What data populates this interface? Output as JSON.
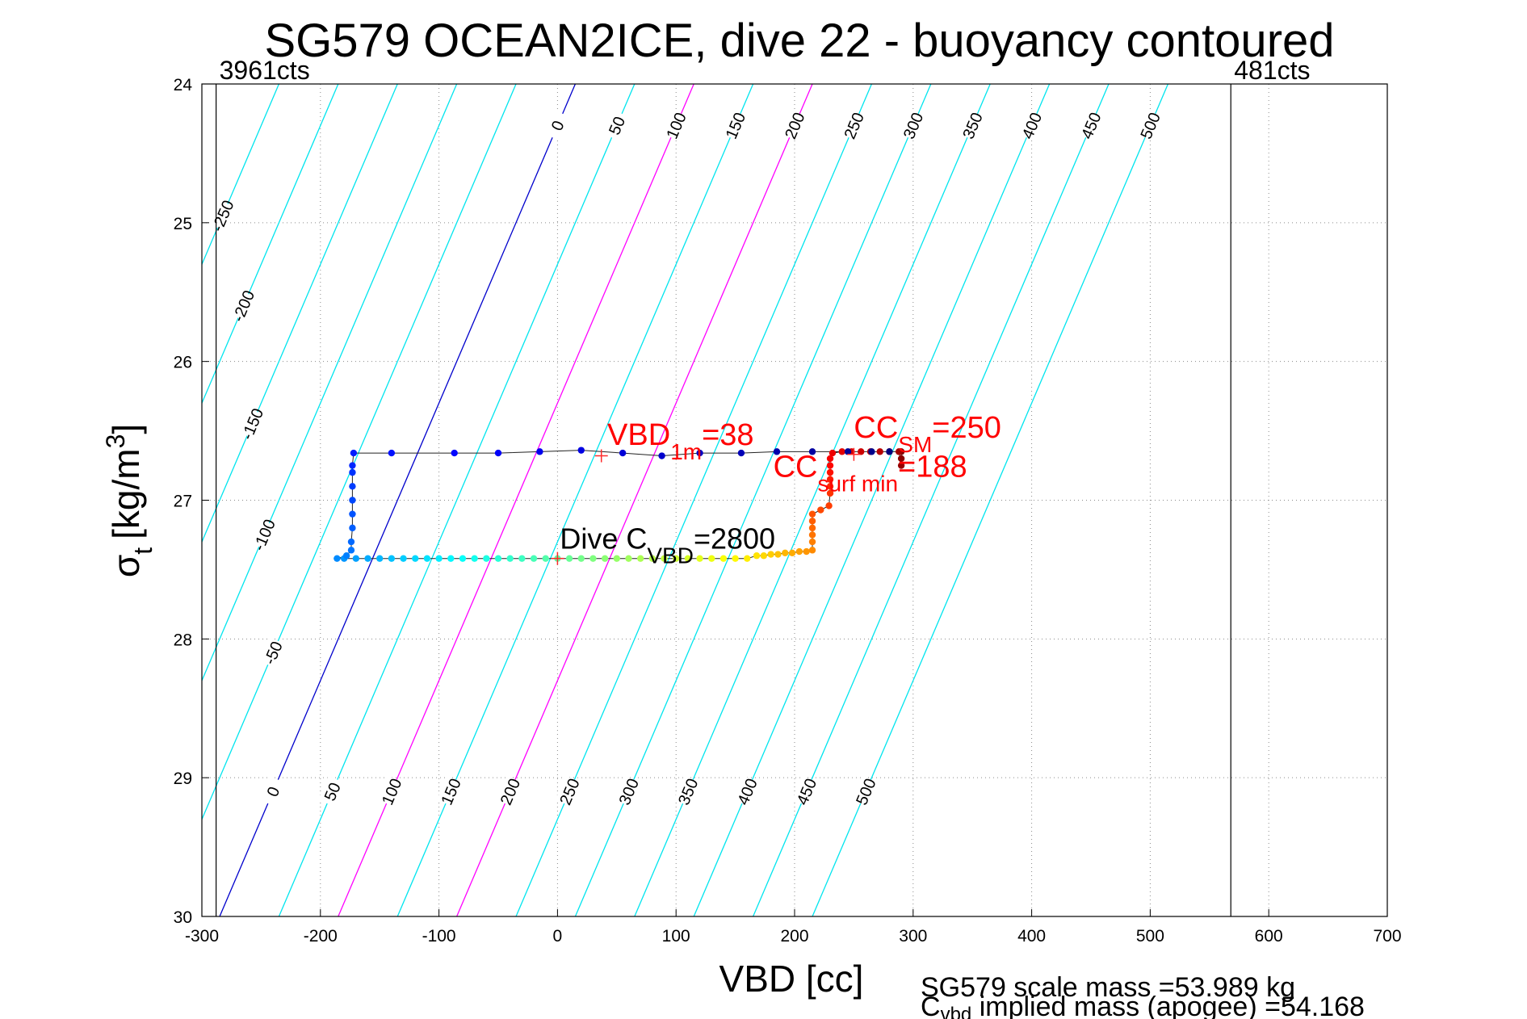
{
  "chart_data": {
    "type": "scatter",
    "title": "SG579 OCEAN2ICE, dive 22 - buoyancy contoured",
    "xlabel": "VBD [cc]",
    "ylabel_main": "σ",
    "ylabel_sub": "t",
    "ylabel_unit": "[kg/m",
    "ylabel_sup": "3",
    "ylabel_close": "]",
    "xlim": [
      -300,
      700
    ],
    "ylim": [
      24,
      30
    ],
    "y_reversed": true,
    "grid": true,
    "xticks": [
      -300,
      -200,
      -100,
      0,
      100,
      200,
      300,
      400,
      500,
      600,
      700
    ],
    "yticks": [
      24,
      25,
      26,
      27,
      28,
      29,
      30
    ],
    "xtick_labels": [
      "-300",
      "-200",
      "-100",
      "0",
      "100",
      "200",
      "300",
      "400",
      "500",
      "600",
      "700"
    ],
    "ytick_labels": [
      "24",
      "25",
      "26",
      "27",
      "28",
      "29",
      "30"
    ],
    "counts_lines": [
      {
        "x": -288,
        "label": "3961cts"
      },
      {
        "x": 568,
        "label": "481cts"
      }
    ],
    "buoyancy_contours": {
      "levels": [
        -250,
        -200,
        -150,
        -100,
        -50,
        0,
        50,
        100,
        150,
        200,
        250,
        300,
        350,
        400,
        450,
        500
      ],
      "labels": [
        "-250",
        "-200",
        "-150",
        "-100",
        "-50",
        "0",
        "50",
        "100",
        "150",
        "200",
        "250",
        "300",
        "350",
        "400",
        "450",
        "500"
      ],
      "top_labels": [
        "-250",
        "-200",
        "-150",
        "-100",
        "-50",
        "0",
        "50",
        "100",
        "150",
        "200",
        "250",
        "300",
        "350",
        "400",
        "450",
        "500"
      ],
      "bottom_labels": [
        "0",
        "50",
        "100",
        "150",
        "200",
        "250",
        "300",
        "350",
        "400",
        "450",
        "500"
      ],
      "zero_x_at_sigma24": 15,
      "zero_x_at_sigma30": -285,
      "colors": {
        "default": "#00e5ee",
        "zero": "#0000cc",
        "highlight": "#ff00ff"
      },
      "highlight_levels": [
        100,
        200
      ]
    },
    "dive_points": [
      {
        "x": 290,
        "y": 26.65
      },
      {
        "x": 290,
        "y": 26.7
      },
      {
        "x": 290,
        "y": 26.75
      },
      {
        "x": 288,
        "y": 26.65
      },
      {
        "x": 280,
        "y": 26.65
      },
      {
        "x": 272,
        "y": 26.65
      },
      {
        "x": 264,
        "y": 26.65
      },
      {
        "x": 256,
        "y": 26.65
      },
      {
        "x": 248,
        "y": 26.65
      },
      {
        "x": 240,
        "y": 26.65
      },
      {
        "x": 232,
        "y": 26.66
      },
      {
        "x": 230,
        "y": 26.7
      },
      {
        "x": 230,
        "y": 26.75
      },
      {
        "x": 230,
        "y": 26.8
      },
      {
        "x": 230,
        "y": 26.85
      },
      {
        "x": 230,
        "y": 26.9
      },
      {
        "x": 230,
        "y": 26.95
      },
      {
        "x": 229,
        "y": 27.04
      },
      {
        "x": 222,
        "y": 27.07
      },
      {
        "x": 215,
        "y": 27.1
      },
      {
        "x": 215,
        "y": 27.15
      },
      {
        "x": 215,
        "y": 27.2
      },
      {
        "x": 215,
        "y": 27.25
      },
      {
        "x": 215,
        "y": 27.3
      },
      {
        "x": 215,
        "y": 27.36
      },
      {
        "x": 210,
        "y": 27.37
      },
      {
        "x": 204,
        "y": 27.37
      },
      {
        "x": 198,
        "y": 27.38
      },
      {
        "x": 192,
        "y": 27.38
      },
      {
        "x": 186,
        "y": 27.39
      },
      {
        "x": 180,
        "y": 27.39
      },
      {
        "x": 174,
        "y": 27.4
      },
      {
        "x": 168,
        "y": 27.4
      },
      {
        "x": 160,
        "y": 27.42
      },
      {
        "x": 150,
        "y": 27.42
      },
      {
        "x": 140,
        "y": 27.42
      },
      {
        "x": 130,
        "y": 27.42
      },
      {
        "x": 120,
        "y": 27.42
      },
      {
        "x": 110,
        "y": 27.42
      },
      {
        "x": 100,
        "y": 27.42
      },
      {
        "x": 90,
        "y": 27.42
      },
      {
        "x": 80,
        "y": 27.42
      },
      {
        "x": 70,
        "y": 27.42
      },
      {
        "x": 60,
        "y": 27.42
      },
      {
        "x": 50,
        "y": 27.42
      },
      {
        "x": 40,
        "y": 27.42
      },
      {
        "x": 30,
        "y": 27.42
      },
      {
        "x": 20,
        "y": 27.42
      },
      {
        "x": 10,
        "y": 27.42
      },
      {
        "x": 0,
        "y": 27.42
      },
      {
        "x": -10,
        "y": 27.42
      },
      {
        "x": -20,
        "y": 27.42
      },
      {
        "x": -30,
        "y": 27.42
      },
      {
        "x": -40,
        "y": 27.42
      },
      {
        "x": -50,
        "y": 27.42
      },
      {
        "x": -60,
        "y": 27.42
      },
      {
        "x": -70,
        "y": 27.42
      },
      {
        "x": -80,
        "y": 27.42
      },
      {
        "x": -90,
        "y": 27.42
      },
      {
        "x": -100,
        "y": 27.42
      },
      {
        "x": -110,
        "y": 27.42
      },
      {
        "x": -120,
        "y": 27.42
      },
      {
        "x": -130,
        "y": 27.42
      },
      {
        "x": -140,
        "y": 27.42
      },
      {
        "x": -150,
        "y": 27.42
      },
      {
        "x": -160,
        "y": 27.42
      },
      {
        "x": -170,
        "y": 27.42
      },
      {
        "x": -180,
        "y": 27.42
      },
      {
        "x": -186,
        "y": 27.42
      },
      {
        "x": -178,
        "y": 27.4
      },
      {
        "x": -174,
        "y": 27.36
      },
      {
        "x": -174,
        "y": 27.3
      },
      {
        "x": -173,
        "y": 27.2
      },
      {
        "x": -173,
        "y": 27.1
      },
      {
        "x": -173,
        "y": 27.0
      },
      {
        "x": -173,
        "y": 26.9
      },
      {
        "x": -173,
        "y": 26.8
      },
      {
        "x": -173,
        "y": 26.75
      },
      {
        "x": -172,
        "y": 26.66
      },
      {
        "x": -140,
        "y": 26.66
      },
      {
        "x": -87,
        "y": 26.66
      },
      {
        "x": -50,
        "y": 26.66
      },
      {
        "x": -15,
        "y": 26.65
      },
      {
        "x": 20,
        "y": 26.64
      },
      {
        "x": 55,
        "y": 26.66
      },
      {
        "x": 88,
        "y": 26.68
      },
      {
        "x": 120,
        "y": 26.66
      },
      {
        "x": 155,
        "y": 26.66
      },
      {
        "x": 185,
        "y": 26.65
      },
      {
        "x": 215,
        "y": 26.65
      },
      {
        "x": 245,
        "y": 26.65
      },
      {
        "x": 265,
        "y": 26.65
      },
      {
        "x": 280,
        "y": 26.65
      }
    ],
    "markers": [
      {
        "x": 37,
        "y": 26.68
      },
      {
        "x": 250,
        "y": 26.67
      },
      {
        "x": 0,
        "y": 27.42
      }
    ],
    "annotations": {
      "vbd_1m": {
        "main": "VBD",
        "sub": "1m",
        "value": "=38",
        "x": 42,
        "y": 26.6
      },
      "cc_sm": {
        "main": "CC",
        "sub": "SM",
        "value": "=250",
        "x": 250,
        "y": 26.55
      },
      "cc_surf_min": {
        "main": "CC",
        "sub": "surf min",
        "value": "=188",
        "x": 182,
        "y": 26.83
      },
      "dive_cvbd": {
        "main": "Dive C",
        "sub": "VBD",
        "value": "=2800",
        "x": 2,
        "y": 27.35
      }
    }
  },
  "footer": {
    "scale_mass": "SG579 scale mass =53.989 kg",
    "implied_main": "C",
    "implied_sub": "vbd",
    "implied_rest": " implied mass (apogee) =54.168"
  }
}
